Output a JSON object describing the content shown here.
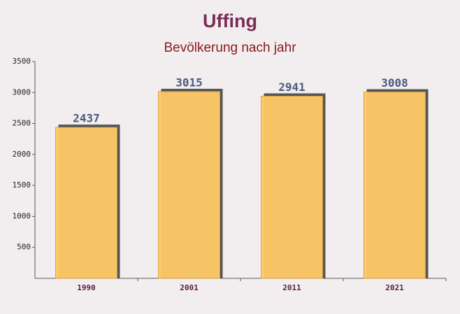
{
  "chart_data": {
    "type": "bar",
    "title": "Uffing",
    "subtitle": "Bevölkerung nach jahr",
    "categories": [
      "1990",
      "2001",
      "2011",
      "2021"
    ],
    "values": [
      2437,
      3015,
      2941,
      3008
    ],
    "color": "#ffc966",
    "ylim": [
      0,
      3500
    ],
    "yticks": [
      500,
      1000,
      1500,
      2000,
      2500,
      3000,
      3500
    ]
  }
}
